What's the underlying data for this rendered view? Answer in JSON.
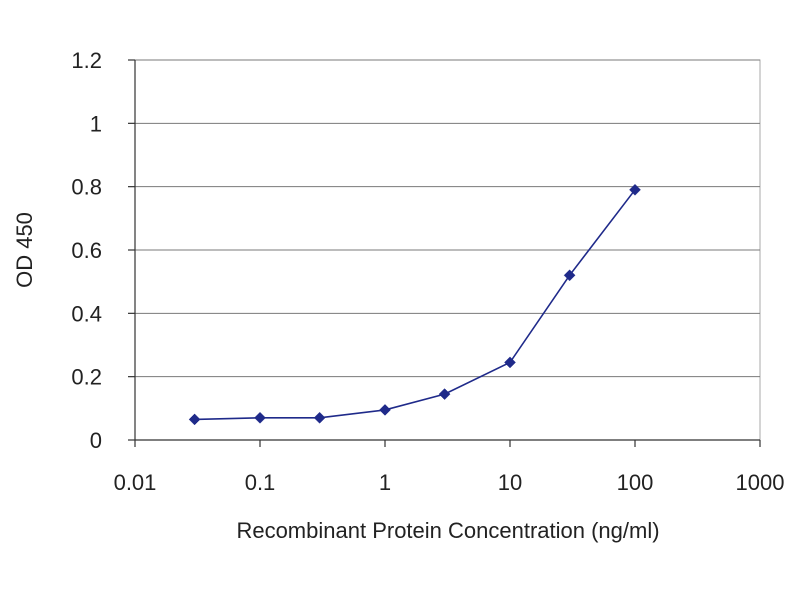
{
  "chart_data": {
    "type": "line",
    "xlabel": "Recombinant Protein Concentration (ng/ml)",
    "ylabel": "OD 450",
    "x_scale": "log",
    "xlim": [
      0.01,
      1000
    ],
    "ylim": [
      0,
      1.2
    ],
    "x_ticks": [
      0.01,
      0.1,
      1,
      10,
      100,
      1000
    ],
    "x_tick_labels": [
      "0.01",
      "0.1",
      "1",
      "10",
      "100",
      "1000"
    ],
    "y_ticks": [
      0,
      0.2,
      0.4,
      0.6,
      0.8,
      1,
      1.2
    ],
    "y_tick_labels": [
      "0",
      "0.2",
      "0.4",
      "0.6",
      "0.8",
      "1",
      "1.2"
    ],
    "grid": "horizontal",
    "series": [
      {
        "color": "#1f2a8a",
        "marker": "diamond",
        "x": [
          0.03,
          0.1,
          0.3,
          1,
          3,
          10,
          30,
          100
        ],
        "y": [
          0.065,
          0.07,
          0.07,
          0.095,
          0.145,
          0.245,
          0.52,
          0.79
        ]
      }
    ]
  }
}
